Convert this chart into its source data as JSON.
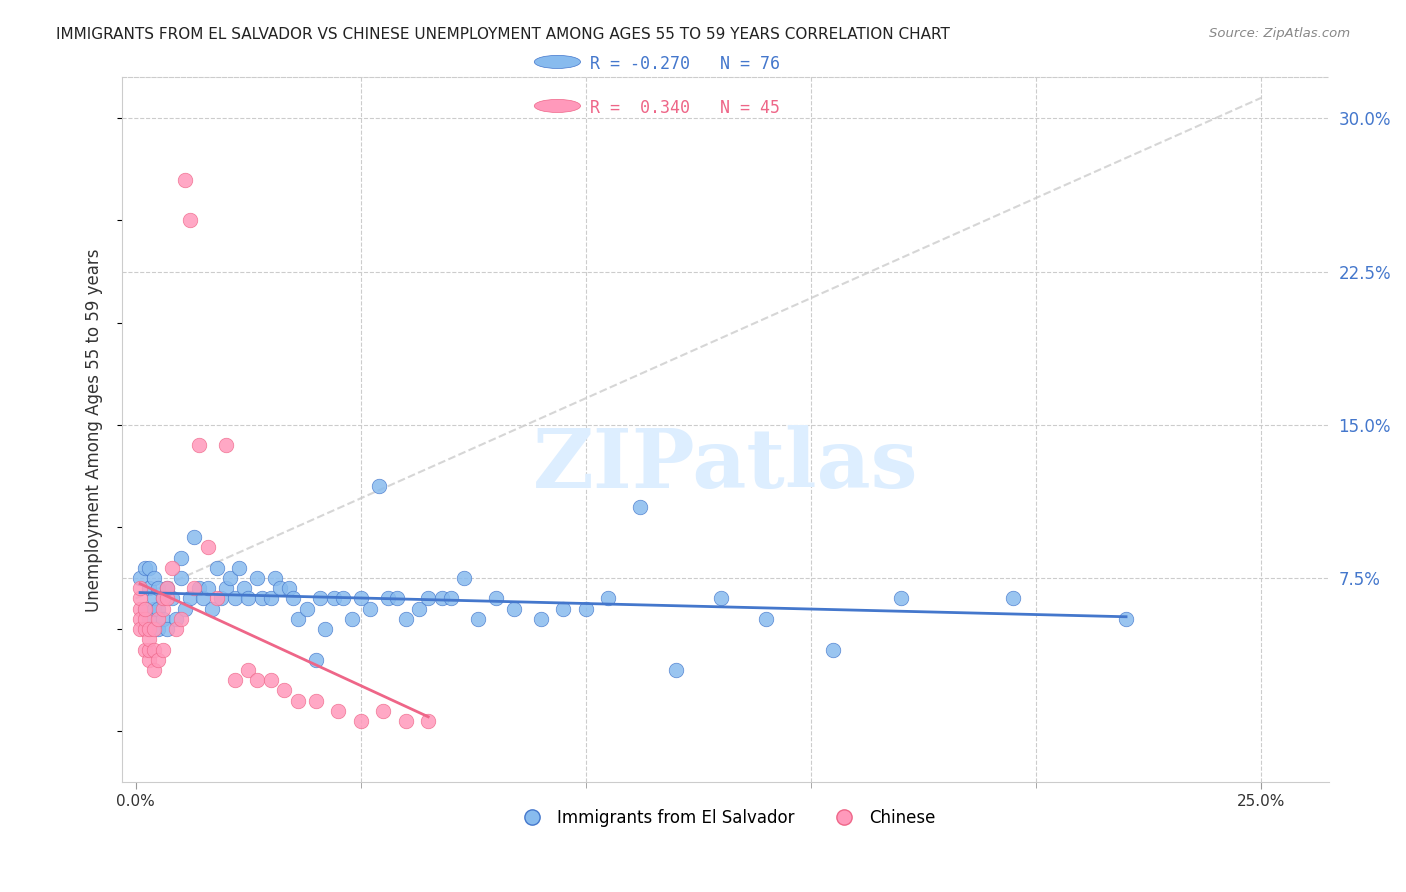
{
  "title": "IMMIGRANTS FROM EL SALVADOR VS CHINESE UNEMPLOYMENT AMONG AGES 55 TO 59 YEARS CORRELATION CHART",
  "source": "Source: ZipAtlas.com",
  "xlabel_blue": "Immigrants from El Salvador",
  "xlabel_pink": "Chinese",
  "ylabel": "Unemployment Among Ages 55 to 59 years",
  "xlim": [
    -0.003,
    0.265
  ],
  "ylim": [
    -0.025,
    0.32
  ],
  "legend_R_blue": "-0.270",
  "legend_N_blue": "76",
  "legend_R_pink": "0.340",
  "legend_N_pink": "45",
  "blue_color": "#88BBEE",
  "pink_color": "#FF99BB",
  "trendline_blue_color": "#4477CC",
  "trendline_pink_color": "#EE6688",
  "watermark_color": "#DDEEFF",
  "watermark": "ZIPatlas",
  "blue_scatter_x": [
    0.001,
    0.002,
    0.002,
    0.003,
    0.003,
    0.003,
    0.004,
    0.004,
    0.004,
    0.005,
    0.005,
    0.005,
    0.006,
    0.006,
    0.007,
    0.007,
    0.008,
    0.009,
    0.01,
    0.01,
    0.011,
    0.012,
    0.013,
    0.014,
    0.015,
    0.016,
    0.017,
    0.018,
    0.019,
    0.02,
    0.021,
    0.022,
    0.023,
    0.024,
    0.025,
    0.027,
    0.028,
    0.03,
    0.031,
    0.032,
    0.034,
    0.035,
    0.036,
    0.038,
    0.04,
    0.041,
    0.042,
    0.044,
    0.046,
    0.048,
    0.05,
    0.052,
    0.054,
    0.056,
    0.058,
    0.06,
    0.063,
    0.065,
    0.068,
    0.07,
    0.073,
    0.076,
    0.08,
    0.084,
    0.09,
    0.095,
    0.1,
    0.105,
    0.112,
    0.12,
    0.13,
    0.14,
    0.155,
    0.17,
    0.195,
    0.22
  ],
  "blue_scatter_y": [
    0.075,
    0.06,
    0.08,
    0.055,
    0.07,
    0.08,
    0.06,
    0.065,
    0.075,
    0.05,
    0.06,
    0.07,
    0.055,
    0.065,
    0.05,
    0.07,
    0.065,
    0.055,
    0.075,
    0.085,
    0.06,
    0.065,
    0.095,
    0.07,
    0.065,
    0.07,
    0.06,
    0.08,
    0.065,
    0.07,
    0.075,
    0.065,
    0.08,
    0.07,
    0.065,
    0.075,
    0.065,
    0.065,
    0.075,
    0.07,
    0.07,
    0.065,
    0.055,
    0.06,
    0.035,
    0.065,
    0.05,
    0.065,
    0.065,
    0.055,
    0.065,
    0.06,
    0.12,
    0.065,
    0.065,
    0.055,
    0.06,
    0.065,
    0.065,
    0.065,
    0.075,
    0.055,
    0.065,
    0.06,
    0.055,
    0.06,
    0.06,
    0.065,
    0.11,
    0.03,
    0.065,
    0.055,
    0.04,
    0.065,
    0.065,
    0.055
  ],
  "pink_scatter_x": [
    0.001,
    0.001,
    0.001,
    0.001,
    0.001,
    0.002,
    0.002,
    0.002,
    0.002,
    0.003,
    0.003,
    0.003,
    0.003,
    0.004,
    0.004,
    0.004,
    0.005,
    0.005,
    0.006,
    0.006,
    0.006,
    0.007,
    0.007,
    0.008,
    0.009,
    0.01,
    0.011,
    0.012,
    0.013,
    0.014,
    0.016,
    0.018,
    0.02,
    0.022,
    0.025,
    0.027,
    0.03,
    0.033,
    0.036,
    0.04,
    0.045,
    0.05,
    0.055,
    0.06,
    0.065
  ],
  "pink_scatter_y": [
    0.06,
    0.065,
    0.07,
    0.055,
    0.05,
    0.04,
    0.05,
    0.055,
    0.06,
    0.035,
    0.04,
    0.045,
    0.05,
    0.03,
    0.04,
    0.05,
    0.035,
    0.055,
    0.06,
    0.065,
    0.04,
    0.065,
    0.07,
    0.08,
    0.05,
    0.055,
    0.27,
    0.25,
    0.07,
    0.14,
    0.09,
    0.065,
    0.14,
    0.025,
    0.03,
    0.025,
    0.025,
    0.02,
    0.015,
    0.015,
    0.01,
    0.005,
    0.01,
    0.005,
    0.005
  ]
}
